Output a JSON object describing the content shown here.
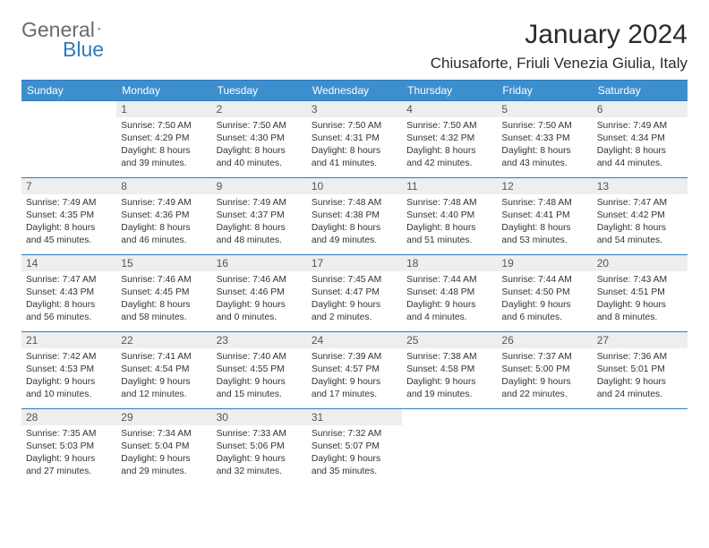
{
  "brand": {
    "word1": "General",
    "word2": "Blue",
    "sail_color": "#2f7bbf"
  },
  "title": "January 2024",
  "location": "Chiusaforte, Friuli Venezia Giulia, Italy",
  "colors": {
    "header_bg": "#3d8ecd",
    "header_text": "#ffffff",
    "rule": "#2f7bbf",
    "daynum_bg": "#eeeeee",
    "body_text": "#333333"
  },
  "weekdays": [
    "Sunday",
    "Monday",
    "Tuesday",
    "Wednesday",
    "Thursday",
    "Friday",
    "Saturday"
  ],
  "weeks": [
    [
      null,
      {
        "n": "1",
        "sunrise": "7:50 AM",
        "sunset": "4:29 PM",
        "day1": "Daylight: 8 hours",
        "day2": "and 39 minutes."
      },
      {
        "n": "2",
        "sunrise": "7:50 AM",
        "sunset": "4:30 PM",
        "day1": "Daylight: 8 hours",
        "day2": "and 40 minutes."
      },
      {
        "n": "3",
        "sunrise": "7:50 AM",
        "sunset": "4:31 PM",
        "day1": "Daylight: 8 hours",
        "day2": "and 41 minutes."
      },
      {
        "n": "4",
        "sunrise": "7:50 AM",
        "sunset": "4:32 PM",
        "day1": "Daylight: 8 hours",
        "day2": "and 42 minutes."
      },
      {
        "n": "5",
        "sunrise": "7:50 AM",
        "sunset": "4:33 PM",
        "day1": "Daylight: 8 hours",
        "day2": "and 43 minutes."
      },
      {
        "n": "6",
        "sunrise": "7:49 AM",
        "sunset": "4:34 PM",
        "day1": "Daylight: 8 hours",
        "day2": "and 44 minutes."
      }
    ],
    [
      {
        "n": "7",
        "sunrise": "7:49 AM",
        "sunset": "4:35 PM",
        "day1": "Daylight: 8 hours",
        "day2": "and 45 minutes."
      },
      {
        "n": "8",
        "sunrise": "7:49 AM",
        "sunset": "4:36 PM",
        "day1": "Daylight: 8 hours",
        "day2": "and 46 minutes."
      },
      {
        "n": "9",
        "sunrise": "7:49 AM",
        "sunset": "4:37 PM",
        "day1": "Daylight: 8 hours",
        "day2": "and 48 minutes."
      },
      {
        "n": "10",
        "sunrise": "7:48 AM",
        "sunset": "4:38 PM",
        "day1": "Daylight: 8 hours",
        "day2": "and 49 minutes."
      },
      {
        "n": "11",
        "sunrise": "7:48 AM",
        "sunset": "4:40 PM",
        "day1": "Daylight: 8 hours",
        "day2": "and 51 minutes."
      },
      {
        "n": "12",
        "sunrise": "7:48 AM",
        "sunset": "4:41 PM",
        "day1": "Daylight: 8 hours",
        "day2": "and 53 minutes."
      },
      {
        "n": "13",
        "sunrise": "7:47 AM",
        "sunset": "4:42 PM",
        "day1": "Daylight: 8 hours",
        "day2": "and 54 minutes."
      }
    ],
    [
      {
        "n": "14",
        "sunrise": "7:47 AM",
        "sunset": "4:43 PM",
        "day1": "Daylight: 8 hours",
        "day2": "and 56 minutes."
      },
      {
        "n": "15",
        "sunrise": "7:46 AM",
        "sunset": "4:45 PM",
        "day1": "Daylight: 8 hours",
        "day2": "and 58 minutes."
      },
      {
        "n": "16",
        "sunrise": "7:46 AM",
        "sunset": "4:46 PM",
        "day1": "Daylight: 9 hours",
        "day2": "and 0 minutes."
      },
      {
        "n": "17",
        "sunrise": "7:45 AM",
        "sunset": "4:47 PM",
        "day1": "Daylight: 9 hours",
        "day2": "and 2 minutes."
      },
      {
        "n": "18",
        "sunrise": "7:44 AM",
        "sunset": "4:48 PM",
        "day1": "Daylight: 9 hours",
        "day2": "and 4 minutes."
      },
      {
        "n": "19",
        "sunrise": "7:44 AM",
        "sunset": "4:50 PM",
        "day1": "Daylight: 9 hours",
        "day2": "and 6 minutes."
      },
      {
        "n": "20",
        "sunrise": "7:43 AM",
        "sunset": "4:51 PM",
        "day1": "Daylight: 9 hours",
        "day2": "and 8 minutes."
      }
    ],
    [
      {
        "n": "21",
        "sunrise": "7:42 AM",
        "sunset": "4:53 PM",
        "day1": "Daylight: 9 hours",
        "day2": "and 10 minutes."
      },
      {
        "n": "22",
        "sunrise": "7:41 AM",
        "sunset": "4:54 PM",
        "day1": "Daylight: 9 hours",
        "day2": "and 12 minutes."
      },
      {
        "n": "23",
        "sunrise": "7:40 AM",
        "sunset": "4:55 PM",
        "day1": "Daylight: 9 hours",
        "day2": "and 15 minutes."
      },
      {
        "n": "24",
        "sunrise": "7:39 AM",
        "sunset": "4:57 PM",
        "day1": "Daylight: 9 hours",
        "day2": "and 17 minutes."
      },
      {
        "n": "25",
        "sunrise": "7:38 AM",
        "sunset": "4:58 PM",
        "day1": "Daylight: 9 hours",
        "day2": "and 19 minutes."
      },
      {
        "n": "26",
        "sunrise": "7:37 AM",
        "sunset": "5:00 PM",
        "day1": "Daylight: 9 hours",
        "day2": "and 22 minutes."
      },
      {
        "n": "27",
        "sunrise": "7:36 AM",
        "sunset": "5:01 PM",
        "day1": "Daylight: 9 hours",
        "day2": "and 24 minutes."
      }
    ],
    [
      {
        "n": "28",
        "sunrise": "7:35 AM",
        "sunset": "5:03 PM",
        "day1": "Daylight: 9 hours",
        "day2": "and 27 minutes."
      },
      {
        "n": "29",
        "sunrise": "7:34 AM",
        "sunset": "5:04 PM",
        "day1": "Daylight: 9 hours",
        "day2": "and 29 minutes."
      },
      {
        "n": "30",
        "sunrise": "7:33 AM",
        "sunset": "5:06 PM",
        "day1": "Daylight: 9 hours",
        "day2": "and 32 minutes."
      },
      {
        "n": "31",
        "sunrise": "7:32 AM",
        "sunset": "5:07 PM",
        "day1": "Daylight: 9 hours",
        "day2": "and 35 minutes."
      },
      null,
      null,
      null
    ]
  ]
}
